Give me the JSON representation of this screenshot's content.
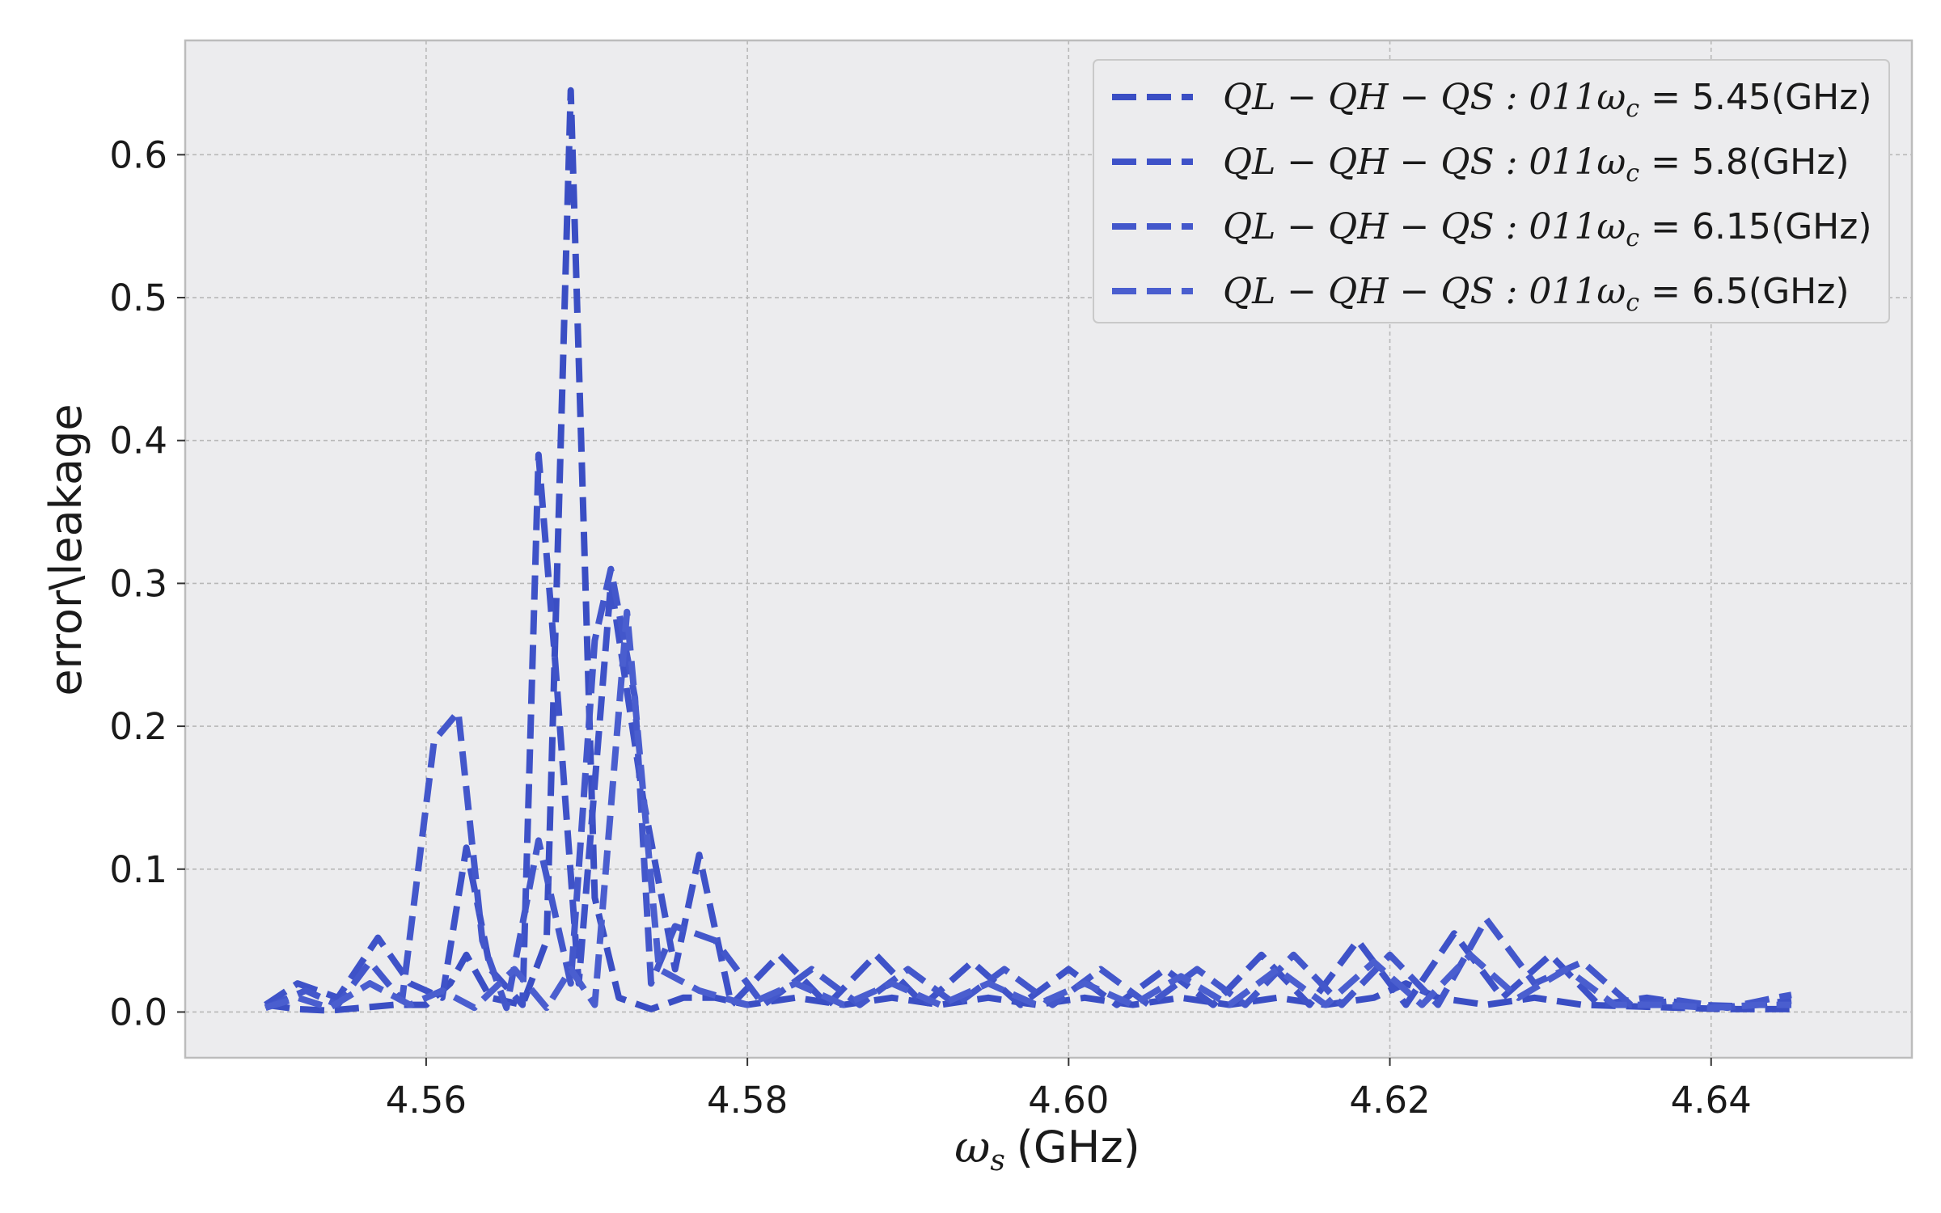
{
  "chart_data": {
    "type": "line",
    "title": "",
    "xlabel": "ω_s (GHz)",
    "xlabel_symbol": "ω",
    "xlabel_sub": "s",
    "xlabel_unit": "(GHz)",
    "ylabel": "error\\leakage",
    "xlim": [
      4.545,
      4.6525
    ],
    "ylim": [
      -0.032,
      0.68
    ],
    "xticks": [
      4.56,
      4.58,
      4.6,
      4.62,
      4.64
    ],
    "xtick_labels": [
      "4.56",
      "4.58",
      "4.60",
      "4.62",
      "4.64"
    ],
    "yticks": [
      0.0,
      0.1,
      0.2,
      0.3,
      0.4,
      0.5,
      0.6
    ],
    "ytick_labels": [
      "0.0",
      "0.1",
      "0.2",
      "0.3",
      "0.4",
      "0.5",
      "0.6"
    ],
    "grid": true,
    "legend_position": "top-right",
    "line_style": "dashed",
    "colors": {
      "background": "#ececee",
      "grid": "#b8b8b8",
      "frame": "#bcbcbc",
      "series": [
        "#3a4ec4",
        "#3e52c8",
        "#4357cb",
        "#4a5ecf"
      ]
    },
    "legend_prefix": "QL − QH − QS : 011ω",
    "legend_sub": "c",
    "series": [
      {
        "name": "QL − QH − QS : 011ω_c = 5.45(GHz)",
        "legend_value": " = 5.45(GHz)",
        "x": [
          4.55,
          4.552,
          4.554,
          4.556,
          4.558,
          4.56,
          4.5615,
          4.5625,
          4.564,
          4.566,
          4.5675,
          4.569,
          4.5705,
          4.572,
          4.574,
          4.576,
          4.578,
          4.58,
          4.583,
          4.586,
          4.589,
          4.592,
          4.595,
          4.598,
          4.601,
          4.604,
          4.607,
          4.61,
          4.613,
          4.616,
          4.619,
          4.621,
          4.623,
          4.626,
          4.629,
          4.632,
          4.635,
          4.638,
          4.641,
          4.644,
          4.645
        ],
        "values": [
          0.005,
          0.002,
          0.001,
          0.003,
          0.005,
          0.005,
          0.02,
          0.04,
          0.01,
          0.005,
          0.05,
          0.645,
          0.08,
          0.01,
          0.002,
          0.01,
          0.01,
          0.005,
          0.01,
          0.005,
          0.01,
          0.005,
          0.01,
          0.005,
          0.01,
          0.005,
          0.01,
          0.005,
          0.01,
          0.005,
          0.01,
          0.02,
          0.01,
          0.005,
          0.01,
          0.005,
          0.004,
          0.003,
          0.002,
          0.002,
          0.002
        ]
      },
      {
        "name": "QL − QH − QS : 011ω_c = 5.8(GHz)",
        "legend_value": " = 5.8(GHz)",
        "x": [
          4.55,
          4.552,
          4.5545,
          4.557,
          4.559,
          4.561,
          4.5625,
          4.564,
          4.566,
          4.567,
          4.568,
          4.5695,
          4.5715,
          4.5735,
          4.5755,
          4.577,
          4.579,
          4.582,
          4.585,
          4.588,
          4.591,
          4.594,
          4.597,
          4.6,
          4.603,
          4.606,
          4.609,
          4.612,
          4.615,
          4.618,
          4.621,
          4.624,
          4.627,
          4.63,
          4.633,
          4.636,
          4.639,
          4.642,
          4.645
        ],
        "values": [
          0.005,
          0.02,
          0.01,
          0.052,
          0.02,
          0.01,
          0.115,
          0.03,
          0.005,
          0.39,
          0.25,
          0.02,
          0.3,
          0.15,
          0.03,
          0.11,
          0.005,
          0.04,
          0.005,
          0.04,
          0.005,
          0.035,
          0.005,
          0.03,
          0.005,
          0.03,
          0.005,
          0.04,
          0.005,
          0.05,
          0.005,
          0.055,
          0.01,
          0.04,
          0.005,
          0.01,
          0.005,
          0.004,
          0.008
        ]
      },
      {
        "name": "QL − QH − QS : 011ω_c = 6.15(GHz)",
        "legend_value": " = 6.15(GHz)",
        "x": [
          4.55,
          4.5525,
          4.5545,
          4.5565,
          4.5585,
          4.5605,
          4.562,
          4.5635,
          4.565,
          4.567,
          4.569,
          4.5705,
          4.5715,
          4.573,
          4.574,
          4.5755,
          4.578,
          4.581,
          4.584,
          4.587,
          4.59,
          4.593,
          4.596,
          4.599,
          4.602,
          4.605,
          4.608,
          4.611,
          4.614,
          4.617,
          4.62,
          4.623,
          4.626,
          4.629,
          4.632,
          4.635,
          4.638,
          4.641,
          4.644,
          4.645
        ],
        "values": [
          0.003,
          0.015,
          0.005,
          0.035,
          0.008,
          0.19,
          0.21,
          0.05,
          0.003,
          0.12,
          0.02,
          0.26,
          0.31,
          0.22,
          0.02,
          0.06,
          0.05,
          0.005,
          0.03,
          0.005,
          0.03,
          0.005,
          0.03,
          0.005,
          0.03,
          0.005,
          0.03,
          0.005,
          0.04,
          0.005,
          0.04,
          0.005,
          0.065,
          0.02,
          0.035,
          0.005,
          0.008,
          0.003,
          0.01,
          0.012
        ]
      },
      {
        "name": "QL − QH − QS : 011ω_c = 6.5(GHz)",
        "legend_value": " = 6.5(GHz)",
        "x": [
          4.55,
          4.552,
          4.554,
          4.5565,
          4.559,
          4.561,
          4.563,
          4.5655,
          4.5675,
          4.569,
          4.5705,
          4.5725,
          4.5745,
          4.577,
          4.58,
          4.583,
          4.586,
          4.589,
          4.592,
          4.595,
          4.598,
          4.601,
          4.604,
          4.607,
          4.61,
          4.613,
          4.616,
          4.619,
          4.622,
          4.625,
          4.628,
          4.631,
          4.634,
          4.637,
          4.64,
          4.643,
          4.645
        ],
        "values": [
          0.003,
          0.01,
          0.003,
          0.02,
          0.005,
          0.015,
          0.003,
          0.03,
          0.003,
          0.03,
          0.005,
          0.28,
          0.03,
          0.015,
          0.005,
          0.02,
          0.005,
          0.02,
          0.005,
          0.02,
          0.005,
          0.02,
          0.005,
          0.025,
          0.005,
          0.03,
          0.005,
          0.035,
          0.005,
          0.04,
          0.01,
          0.03,
          0.005,
          0.005,
          0.003,
          0.005,
          0.005
        ]
      }
    ]
  }
}
